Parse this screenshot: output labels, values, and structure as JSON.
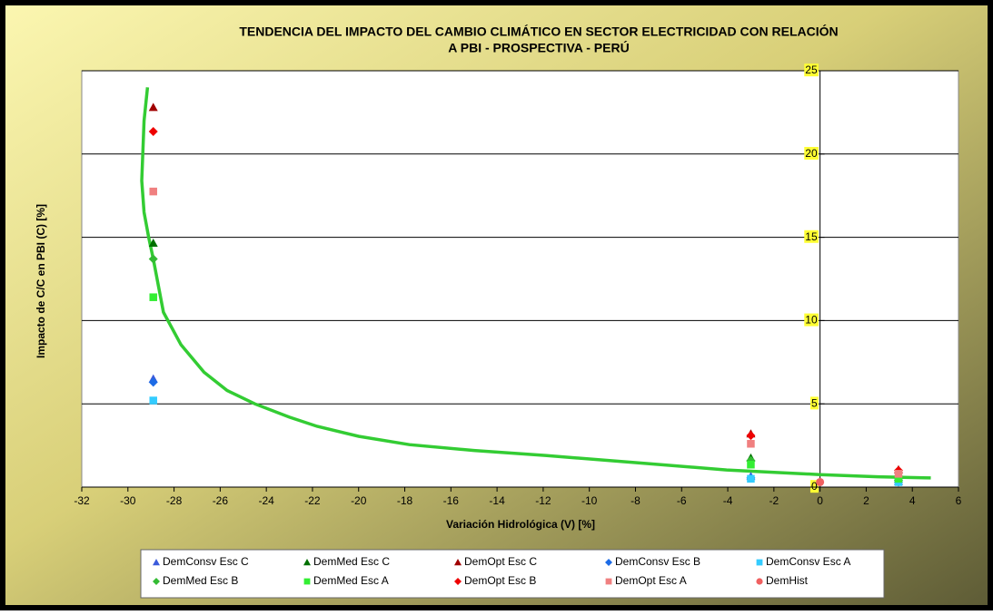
{
  "chart_data": {
    "type": "scatter",
    "title": [
      "TENDENCIA DEL IMPACTO DEL CAMBIO CLIMÁTICO EN SECTOR ELECTRICIDAD CON RELACIÓN",
      "A PBI - PROSPECTIVA - PERÚ"
    ],
    "x_label": "Variación Hidrológica (V) [%]",
    "y_label": "Impacto de C/C en PBI (C) [%]",
    "xlim": [
      -32,
      6
    ],
    "xticks": [
      -32,
      -30,
      -28,
      -26,
      -24,
      -22,
      -20,
      -18,
      -16,
      -14,
      -12,
      -10,
      -8,
      -6,
      -4,
      -2,
      0,
      2,
      4,
      6
    ],
    "ylim": [
      0,
      25
    ],
    "yticks": [
      0,
      5,
      10,
      15,
      20,
      25
    ],
    "grid": true,
    "series": [
      {
        "name": "DemConsv Esc C",
        "color": "#3b5bdb",
        "marker": "triangle",
        "x": [
          -28.9,
          -3.0,
          3.4
        ],
        "values": [
          6.5,
          0.65,
          0.35
        ]
      },
      {
        "name": "DemMed Esc C",
        "color": "#007000",
        "marker": "triangle",
        "x": [
          -28.9,
          -3.0,
          3.4
        ],
        "values": [
          14.65,
          1.75,
          0.6
        ]
      },
      {
        "name": "DemOpt Esc C",
        "color": "#a00000",
        "marker": "triangle",
        "x": [
          -28.9,
          -3.0,
          3.4
        ],
        "values": [
          22.8,
          3.2,
          1.05
        ]
      },
      {
        "name": "DemConsv Esc B",
        "color": "#1c6be6",
        "marker": "diamond",
        "x": [
          -28.9,
          -3.0,
          3.4
        ],
        "values": [
          6.3,
          0.55,
          0.3
        ]
      },
      {
        "name": "DemConsv Esc A",
        "color": "#33ccff",
        "marker": "square",
        "x": [
          -28.9,
          -3.0,
          3.4
        ],
        "values": [
          5.2,
          0.5,
          0.3
        ]
      },
      {
        "name": "DemMed Esc B",
        "color": "#33bb33",
        "marker": "diamond",
        "x": [
          -28.9,
          -3.0,
          3.4
        ],
        "values": [
          13.7,
          1.6,
          0.55
        ]
      },
      {
        "name": "DemMed Esc A",
        "color": "#33ee33",
        "marker": "square",
        "x": [
          -28.9,
          -3.0,
          3.4
        ],
        "values": [
          11.4,
          1.35,
          0.5
        ]
      },
      {
        "name": "DemOpt Esc B",
        "color": "#ee0000",
        "marker": "diamond",
        "x": [
          -28.9,
          -3.0,
          3.4
        ],
        "values": [
          21.35,
          3.1,
          1.0
        ]
      },
      {
        "name": "DemOpt Esc A",
        "color": "#f08080",
        "marker": "square",
        "x": [
          -28.9,
          -3.0,
          3.4
        ],
        "values": [
          17.75,
          2.6,
          0.8
        ]
      },
      {
        "name": "DemHist",
        "color": "#f06060",
        "marker": "circle",
        "x": [
          0
        ],
        "values": [
          0.3
        ]
      }
    ],
    "trendline": {
      "color": "#33cc33",
      "x": [
        -29.15,
        -29.3,
        -29.4,
        -29.3,
        -29.1,
        -28.9,
        -28.46,
        -27.7,
        -26.7,
        -25.7,
        -24.5,
        -23,
        -21.8,
        -20,
        -17.8,
        -15,
        -11.9,
        -8,
        -4.05,
        0,
        2.5,
        4.8
      ],
      "values": [
        24,
        22,
        18.4,
        16.5,
        15,
        13.7,
        10.5,
        8.55,
        6.9,
        5.8,
        5.0,
        4.2,
        3.65,
        3.05,
        2.55,
        2.2,
        1.9,
        1.47,
        1.03,
        0.75,
        0.62,
        0.55
      ]
    }
  }
}
